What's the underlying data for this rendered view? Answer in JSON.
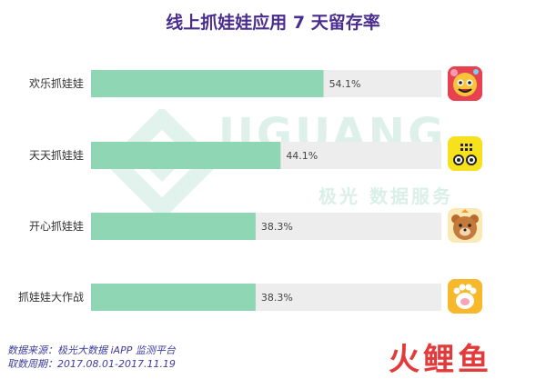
{
  "title": "线上抓娃娃应用 7 天留存率",
  "watermark": {
    "brand": "JIGUANG",
    "tagline": "极光 数据服务"
  },
  "chart_data": {
    "type": "bar",
    "orientation": "horizontal",
    "categories": [
      "欢乐抓娃娃",
      "天天抓娃娃",
      "开心抓娃娃",
      "抓娃娃大作战"
    ],
    "values": [
      54.1,
      44.1,
      38.3,
      38.3
    ],
    "value_labels": [
      "54.1%",
      "44.1%",
      "38.3%",
      "38.3%"
    ],
    "xlim": [
      0,
      100
    ],
    "bar_color": "#8fd6b5",
    "track_color": "#ededed",
    "grid": false,
    "legend": "none"
  },
  "icons": [
    "candy-face-app-icon",
    "yellow-face-app-icon",
    "bear-app-icon",
    "cat-paw-app-icon"
  ],
  "footer": {
    "source": "数据来源：极光大数据 iAPP 监测平台",
    "period": "取数周期：2017.08.01-2017.11.19"
  },
  "brand_logo": "火鲤鱼",
  "colors": {
    "title": "#4a2d8f",
    "bar": "#8fd6b5",
    "track": "#ededed",
    "footer": "#3d3d9c",
    "brand": "#e33b3b"
  }
}
